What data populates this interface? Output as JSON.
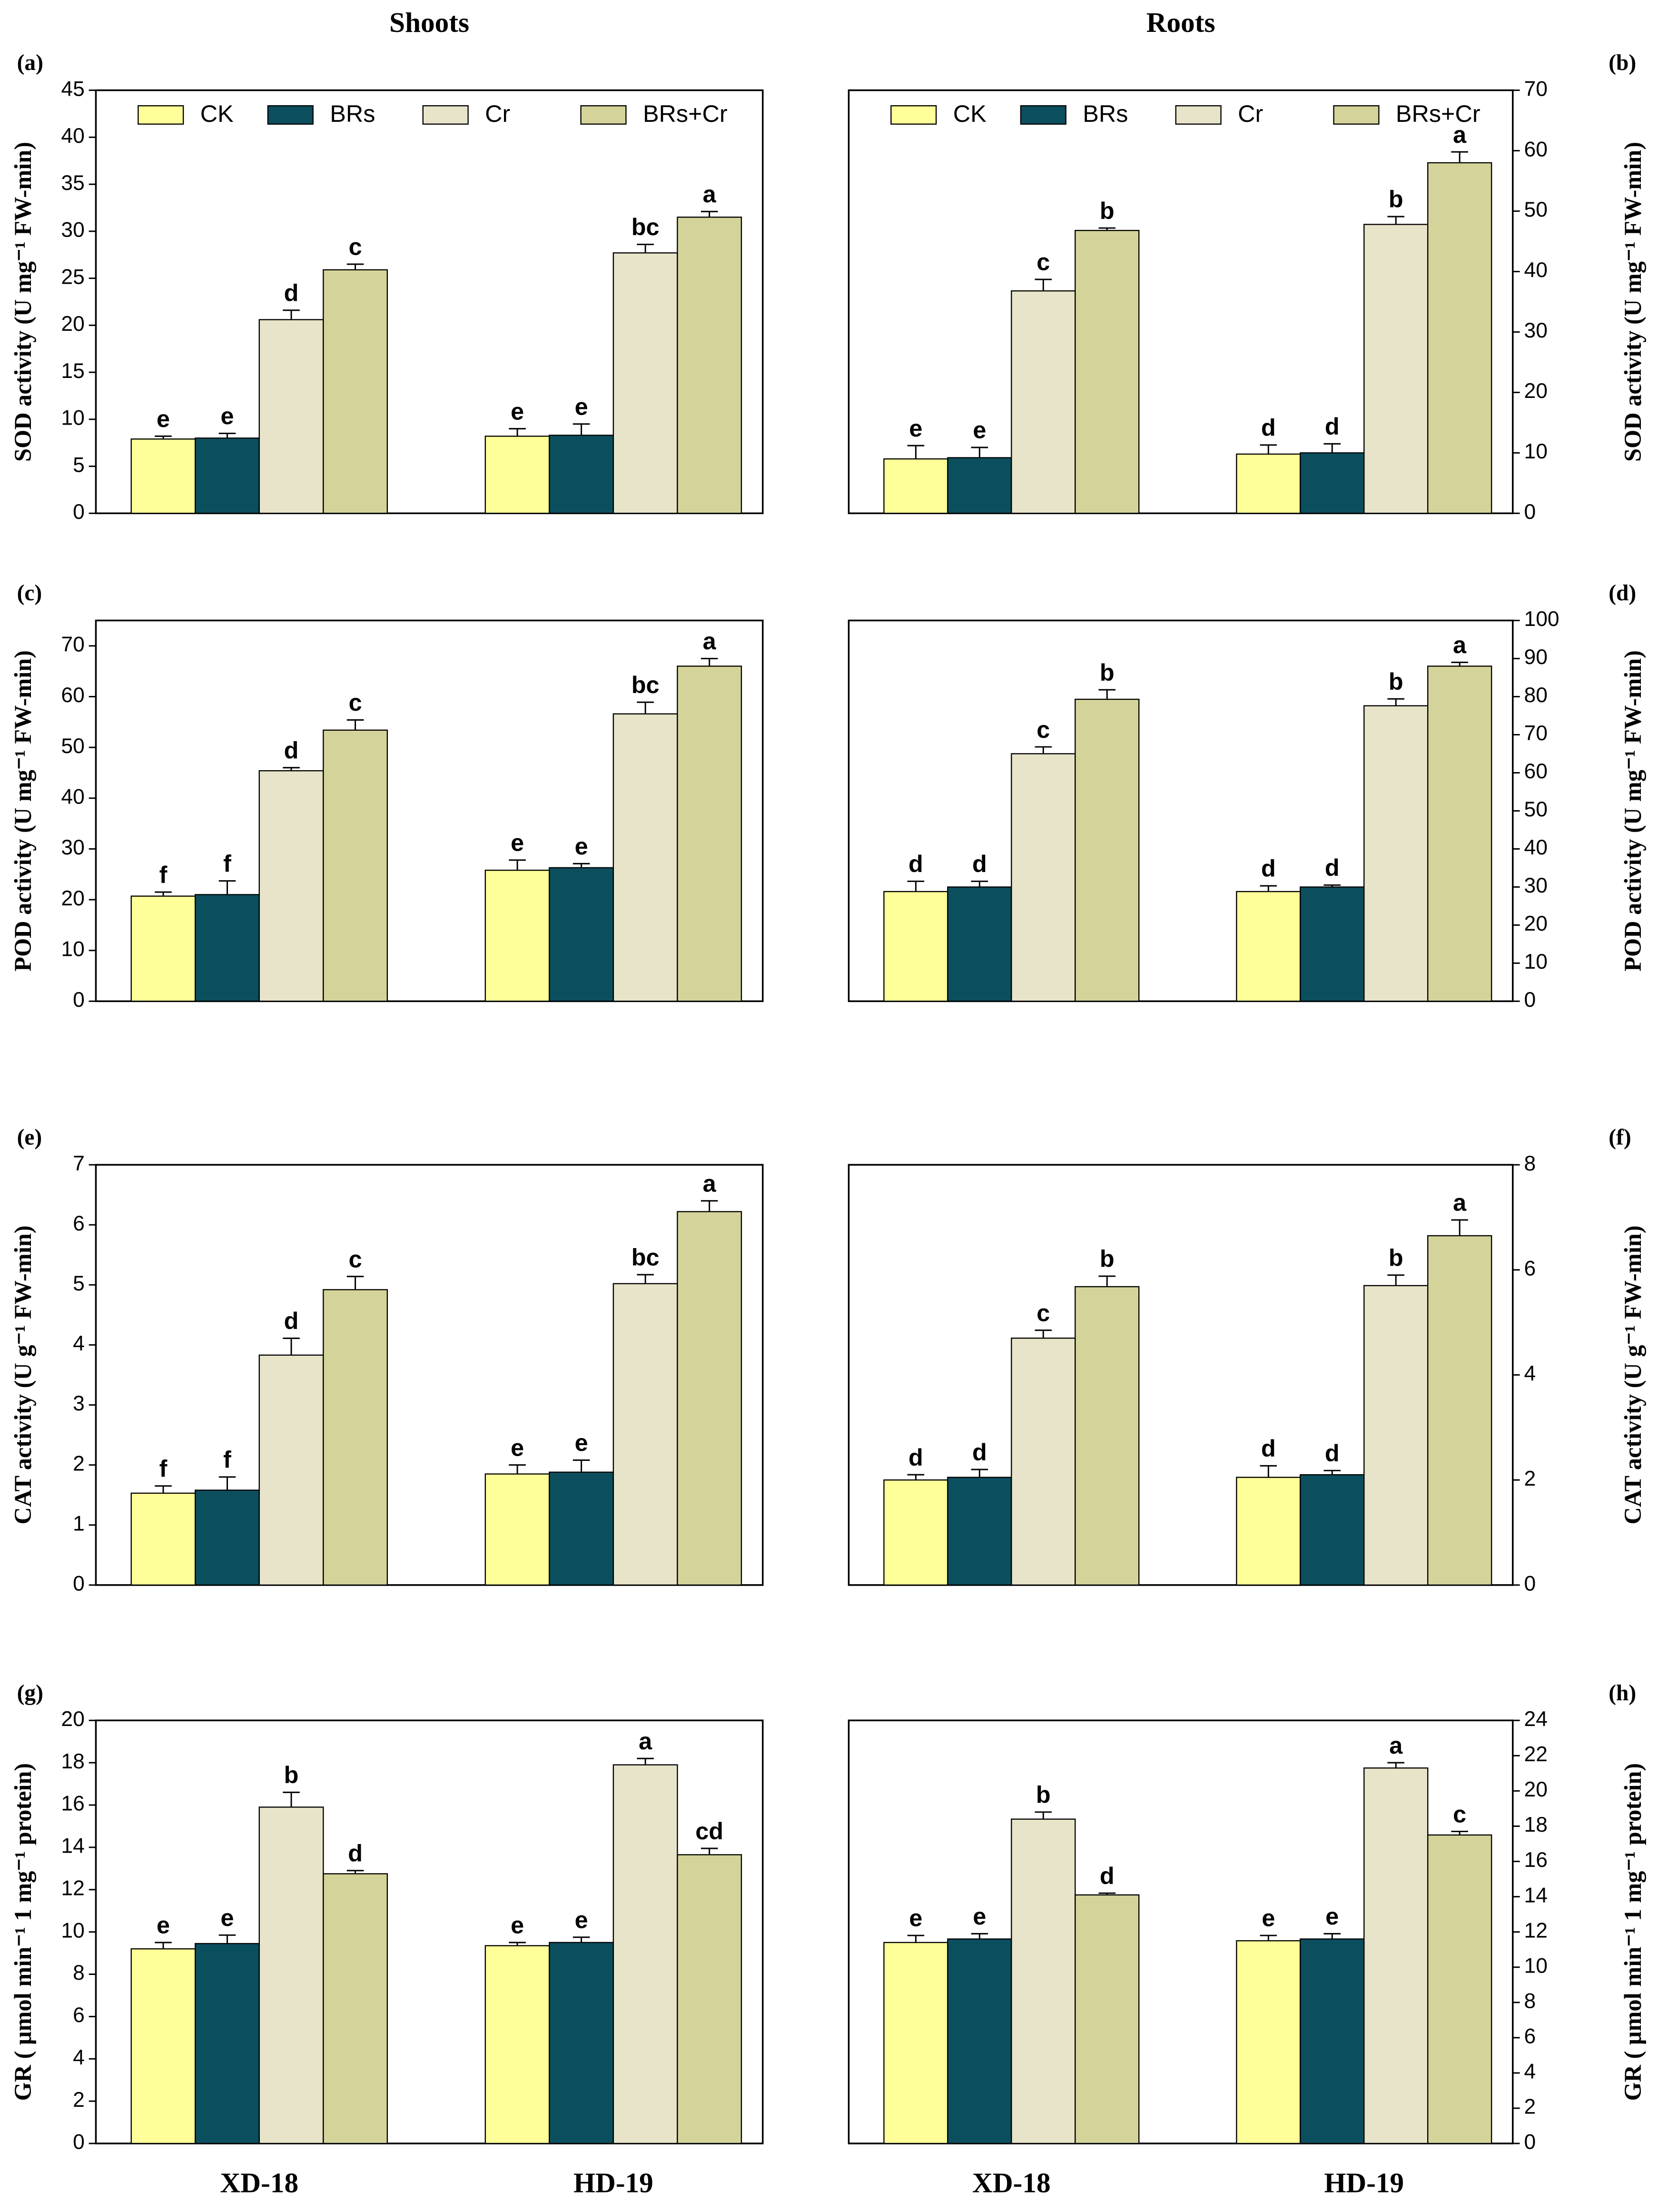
{
  "chart_data": [
    {
      "type": "bar",
      "panel": "(a)",
      "title": "Shoots",
      "ylabel": "SOD activity (U mg⁻¹ FW-min)",
      "categories": [
        null,
        null
      ],
      "ylim": [
        0,
        45
      ],
      "yticks": [
        0,
        5,
        10,
        15,
        20,
        25,
        30,
        35,
        40,
        45
      ],
      "axis_side": "left",
      "legend": true,
      "series": [
        {
          "name": "CK",
          "color": "#ffff99",
          "values": [
            7.9,
            8.2
          ],
          "errors": [
            0.3,
            0.8
          ],
          "letters": [
            "e",
            "e"
          ]
        },
        {
          "name": "BRs",
          "color": "#0b4f5f",
          "values": [
            8.0,
            8.3
          ],
          "errors": [
            0.5,
            1.2
          ],
          "letters": [
            "e",
            "e"
          ]
        },
        {
          "name": "Cr",
          "color": "#e8e4c9",
          "values": [
            20.6,
            27.7
          ],
          "errors": [
            1.0,
            0.9
          ],
          "letters": [
            "d",
            "bc"
          ]
        },
        {
          "name": "BRs+Cr",
          "color": "#d4d49a",
          "values": [
            25.9,
            31.5
          ],
          "errors": [
            0.6,
            0.6
          ],
          "letters": [
            "c",
            "a"
          ]
        }
      ]
    },
    {
      "type": "bar",
      "panel": "(b)",
      "title": "Roots",
      "ylabel": "SOD activity (U mg⁻¹ FW-min)",
      "categories": [
        null,
        null
      ],
      "ylim": [
        0,
        70
      ],
      "yticks": [
        0,
        10,
        20,
        30,
        40,
        50,
        60,
        70
      ],
      "axis_side": "right",
      "legend": true,
      "series": [
        {
          "name": "CK",
          "color": "#ffff99",
          "values": [
            9.0,
            9.8
          ],
          "errors": [
            2.2,
            1.5
          ],
          "letters": [
            "e",
            "d"
          ]
        },
        {
          "name": "BRs",
          "color": "#0b4f5f",
          "values": [
            9.2,
            10.0
          ],
          "errors": [
            1.7,
            1.5
          ],
          "letters": [
            "e",
            "d"
          ]
        },
        {
          "name": "Cr",
          "color": "#e8e4c9",
          "values": [
            36.8,
            47.8
          ],
          "errors": [
            1.9,
            1.3
          ],
          "letters": [
            "c",
            "b"
          ]
        },
        {
          "name": "BRs+Cr",
          "color": "#d4d49a",
          "values": [
            46.8,
            58.0
          ],
          "errors": [
            0.4,
            1.8
          ],
          "letters": [
            "b",
            "a"
          ]
        }
      ]
    },
    {
      "type": "bar",
      "panel": "(c)",
      "ylabel": "POD activity (U mg⁻¹ FW-min)",
      "categories": [
        null,
        null
      ],
      "ylim": [
        0,
        75
      ],
      "yticks": [
        0,
        10,
        20,
        30,
        40,
        50,
        60,
        70
      ],
      "axis_side": "left",
      "legend": false,
      "series": [
        {
          "color": "#ffff99",
          "values": [
            20.7,
            25.8
          ],
          "errors": [
            0.8,
            2.0
          ],
          "letters": [
            "f",
            "e"
          ]
        },
        {
          "color": "#0b4f5f",
          "values": [
            21.0,
            26.3
          ],
          "errors": [
            2.7,
            0.8
          ],
          "letters": [
            "f",
            "e"
          ]
        },
        {
          "color": "#e8e4c9",
          "values": [
            45.4,
            56.6
          ],
          "errors": [
            0.6,
            2.3
          ],
          "letters": [
            "d",
            "bc"
          ]
        },
        {
          "color": "#d4d49a",
          "values": [
            53.4,
            66.0
          ],
          "errors": [
            2.0,
            1.5
          ],
          "letters": [
            "c",
            "a"
          ]
        }
      ]
    },
    {
      "type": "bar",
      "panel": "(d)",
      "ylabel": "POD activity (U mg⁻¹ FW-min)",
      "categories": [
        null,
        null
      ],
      "ylim": [
        0,
        100
      ],
      "yticks": [
        0,
        10,
        20,
        30,
        40,
        50,
        60,
        70,
        80,
        90,
        100
      ],
      "axis_side": "right",
      "legend": false,
      "series": [
        {
          "color": "#ffff99",
          "values": [
            28.8,
            28.8
          ],
          "errors": [
            2.7,
            1.5
          ],
          "letters": [
            "d",
            "d"
          ]
        },
        {
          "color": "#0b4f5f",
          "values": [
            30.0,
            30.0
          ],
          "errors": [
            1.5,
            0.5
          ],
          "letters": [
            "d",
            "d"
          ]
        },
        {
          "color": "#e8e4c9",
          "values": [
            65.0,
            77.6
          ],
          "errors": [
            1.8,
            1.8
          ],
          "letters": [
            "c",
            "b"
          ]
        },
        {
          "color": "#d4d49a",
          "values": [
            79.3,
            88.0
          ],
          "errors": [
            2.5,
            1.0
          ],
          "letters": [
            "b",
            "a"
          ]
        }
      ]
    },
    {
      "type": "bar",
      "panel": "(e)",
      "ylabel": "CAT activity (U g⁻¹ FW-min)",
      "categories": [
        null,
        null
      ],
      "ylim": [
        0,
        7
      ],
      "yticks": [
        0,
        1,
        2,
        3,
        4,
        5,
        6,
        7
      ],
      "axis_side": "left",
      "legend": false,
      "series": [
        {
          "color": "#ffff99",
          "values": [
            1.53,
            1.85
          ],
          "errors": [
            0.12,
            0.15
          ],
          "letters": [
            "f",
            "e"
          ]
        },
        {
          "color": "#0b4f5f",
          "values": [
            1.58,
            1.88
          ],
          "errors": [
            0.22,
            0.2
          ],
          "letters": [
            "f",
            "e"
          ]
        },
        {
          "color": "#e8e4c9",
          "values": [
            3.83,
            5.02
          ],
          "errors": [
            0.28,
            0.15
          ],
          "letters": [
            "d",
            "bc"
          ]
        },
        {
          "color": "#d4d49a",
          "values": [
            4.92,
            6.22
          ],
          "errors": [
            0.22,
            0.18
          ],
          "letters": [
            "c",
            "a"
          ]
        }
      ]
    },
    {
      "type": "bar",
      "panel": "(f)",
      "ylabel": "CAT activity (U g⁻¹ FW-min)",
      "categories": [
        null,
        null
      ],
      "ylim": [
        0,
        8
      ],
      "yticks": [
        0,
        2,
        4,
        6,
        8
      ],
      "axis_side": "right",
      "legend": false,
      "series": [
        {
          "color": "#ffff99",
          "values": [
            2.0,
            2.05
          ],
          "errors": [
            0.1,
            0.22
          ],
          "letters": [
            "d",
            "d"
          ]
        },
        {
          "color": "#0b4f5f",
          "values": [
            2.05,
            2.1
          ],
          "errors": [
            0.15,
            0.08
          ],
          "letters": [
            "d",
            "d"
          ]
        },
        {
          "color": "#e8e4c9",
          "values": [
            4.7,
            5.7
          ],
          "errors": [
            0.15,
            0.2
          ],
          "letters": [
            "c",
            "b"
          ]
        },
        {
          "color": "#d4d49a",
          "values": [
            5.68,
            6.65
          ],
          "errors": [
            0.2,
            0.3
          ],
          "letters": [
            "b",
            "a"
          ]
        }
      ]
    },
    {
      "type": "bar",
      "panel": "(g)",
      "ylabel": "GR ( μmol min⁻¹ 1 mg⁻¹ protein)",
      "categories": [
        "XD-18",
        "HD-19"
      ],
      "ylim": [
        0,
        20
      ],
      "yticks": [
        0,
        2,
        4,
        6,
        8,
        10,
        12,
        14,
        16,
        18,
        20
      ],
      "axis_side": "left",
      "legend": false,
      "series": [
        {
          "color": "#ffff99",
          "values": [
            9.2,
            9.35
          ],
          "errors": [
            0.3,
            0.15
          ],
          "letters": [
            "e",
            "e"
          ]
        },
        {
          "color": "#0b4f5f",
          "values": [
            9.45,
            9.5
          ],
          "errors": [
            0.4,
            0.25
          ],
          "letters": [
            "e",
            "e"
          ]
        },
        {
          "color": "#e8e4c9",
          "values": [
            15.9,
            17.9
          ],
          "errors": [
            0.7,
            0.3
          ],
          "letters": [
            "b",
            "a"
          ]
        },
        {
          "color": "#d4d49a",
          "values": [
            12.75,
            13.65
          ],
          "errors": [
            0.15,
            0.3
          ],
          "letters": [
            "d",
            "cd"
          ]
        }
      ]
    },
    {
      "type": "bar",
      "panel": "(h)",
      "ylabel": "GR ( μmol min⁻¹ 1 mg⁻¹ protein)",
      "categories": [
        "XD-18",
        "HD-19"
      ],
      "ylim": [
        0,
        24
      ],
      "yticks": [
        0,
        2,
        4,
        6,
        8,
        10,
        12,
        14,
        16,
        18,
        20,
        22,
        24
      ],
      "axis_side": "right",
      "legend": false,
      "series": [
        {
          "color": "#ffff99",
          "values": [
            11.4,
            11.5
          ],
          "errors": [
            0.4,
            0.3
          ],
          "letters": [
            "e",
            "e"
          ]
        },
        {
          "color": "#0b4f5f",
          "values": [
            11.6,
            11.6
          ],
          "errors": [
            0.3,
            0.3
          ],
          "letters": [
            "e",
            "e"
          ]
        },
        {
          "color": "#e8e4c9",
          "values": [
            18.4,
            21.3
          ],
          "errors": [
            0.4,
            0.3
          ],
          "letters": [
            "b",
            "a"
          ]
        },
        {
          "color": "#d4d49a",
          "values": [
            14.1,
            17.5
          ],
          "errors": [
            0.1,
            0.2
          ],
          "letters": [
            "d",
            "c"
          ]
        }
      ]
    }
  ]
}
